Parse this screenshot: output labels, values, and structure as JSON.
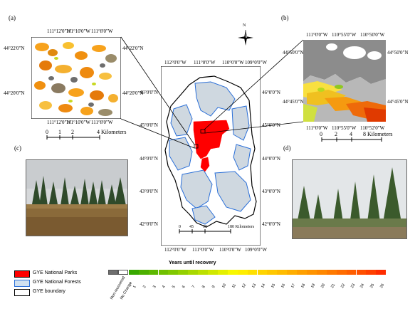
{
  "panels": {
    "a": "(a)",
    "b": "(b)",
    "c": "(c)",
    "d": "(d)"
  },
  "inset_a": {
    "top_ticks": [
      "111°12'0\"W",
      "111°10'0\"W",
      "111°8'0\"W"
    ],
    "bottom_ticks": [
      "111°12'0\"W",
      "111°10'0\"W",
      "111°8'0\"W"
    ],
    "left_ticks": [
      "44°22'0\"N",
      "44°20'0\"N"
    ],
    "right_ticks": [
      "44°22'0\"N",
      "44°20'0\"N"
    ],
    "scale_labels": [
      "0",
      "1",
      "2",
      "4 Kilometers"
    ]
  },
  "inset_b": {
    "top_ticks": [
      "111°0'0\"W",
      "110°55'0\"W",
      "110°50'0\"W"
    ],
    "bottom_ticks": [
      "111°0'0\"W",
      "110°55'0\"W",
      "110°52'0\"W"
    ],
    "left_ticks": [
      "44°50'0\"N",
      "44°45'0\"N"
    ],
    "right_ticks": [
      "44°50'0\"N",
      "44°45'0\"N"
    ],
    "scale_labels": [
      "0",
      "2",
      "4",
      "8 Kilometers"
    ]
  },
  "main_map": {
    "top_ticks": [
      "112°0'0\"W",
      "111°0'0\"W",
      "110°0'0\"W",
      "109°0'0\"W"
    ],
    "bottom_ticks": [
      "112°0'0\"W",
      "111°0'0\"W",
      "110°0'0\"W",
      "109°0'0\"W"
    ],
    "left_ticks": [
      "46°0'0\"N",
      "45°0'0\"N",
      "44°0'0\"N",
      "43°0'0\"N",
      "42°0'0\"N"
    ],
    "right_ticks": [
      "46°0'0\"N",
      "45°0'0\"N",
      "44°0'0\"N",
      "43°0'0\"N",
      "42°0'0\"N"
    ],
    "scale_labels": [
      "0",
      "45",
      "90",
      "180 Kilometers"
    ]
  },
  "north_arrow": "N",
  "legend": {
    "items": [
      {
        "label": "GYE National Parks",
        "color": "#ff0000"
      },
      {
        "label": "GYE National Forests",
        "color": "#cfe0f0"
      },
      {
        "label": "GYE boundary",
        "color": "#ffffff"
      }
    ]
  },
  "colorbar": {
    "title": "Years until recovery",
    "special": [
      {
        "label": "Non-recovered",
        "color": "#6e6e6e"
      },
      {
        "label": "No Change",
        "color": "#ffffff"
      }
    ],
    "numbers": [
      "1",
      "2",
      "3",
      "4",
      "5",
      "6",
      "7",
      "8",
      "9",
      "10",
      "11",
      "12",
      "13",
      "14",
      "15",
      "16",
      "17",
      "18",
      "19",
      "20",
      "21",
      "22",
      "23",
      "24",
      "25",
      "26"
    ],
    "colors": [
      "#38a800",
      "#4cb000",
      "#5cb800",
      "#70c000",
      "#80c800",
      "#94d000",
      "#a8d800",
      "#bce000",
      "#d0e800",
      "#e4f000",
      "#f8f800",
      "#ffee00",
      "#ffe000",
      "#ffd400",
      "#ffc800",
      "#ffbc00",
      "#ffae00",
      "#ffa000",
      "#ff9400",
      "#ff8800",
      "#ff7a00",
      "#ff6c00",
      "#ff5e00",
      "#ff5000",
      "#ff4000",
      "#ff2c00"
    ]
  },
  "colors": {
    "park": "#ff0000",
    "forest_fill": "#cfd8e0",
    "forest_line": "#2a6fd8",
    "nonrecovered": "#8c8c8c"
  }
}
